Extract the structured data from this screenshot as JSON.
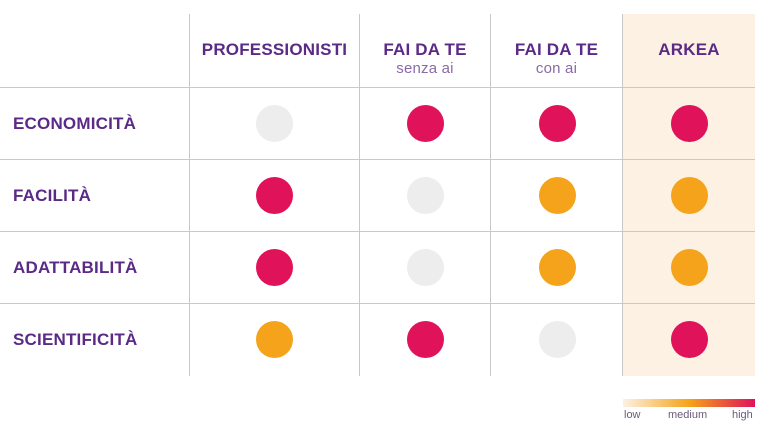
{
  "chart_data": {
    "type": "table",
    "columns": [
      {
        "label": "PROFESSIONISTI",
        "sublabel": ""
      },
      {
        "label": "FAI DA TE",
        "sublabel": "senza ai"
      },
      {
        "label": "FAI DA TE",
        "sublabel": "con ai"
      },
      {
        "label": "ARKEA",
        "sublabel": ""
      }
    ],
    "rows": [
      {
        "label": "ECONOMICITÀ",
        "levels": [
          "low",
          "high",
          "high",
          "high"
        ]
      },
      {
        "label": "FACILITÀ",
        "levels": [
          "high",
          "low",
          "medium",
          "medium"
        ]
      },
      {
        "label": "ADATTABILITÀ",
        "levels": [
          "high",
          "low",
          "medium",
          "medium"
        ]
      },
      {
        "label": "SCIENTIFICITÀ",
        "levels": [
          "medium",
          "high",
          "low",
          "high"
        ]
      }
    ],
    "highlighted_column": "ARKEA",
    "legend": {
      "low": "low",
      "medium": "medium",
      "high": "high"
    },
    "colors": {
      "low": "#ededed",
      "medium": "#f5a31a",
      "high": "#e0125a",
      "highlight_bg": "#fdf1e3",
      "text": "#5b2a86",
      "legend_start": "#fdf1e3"
    }
  }
}
